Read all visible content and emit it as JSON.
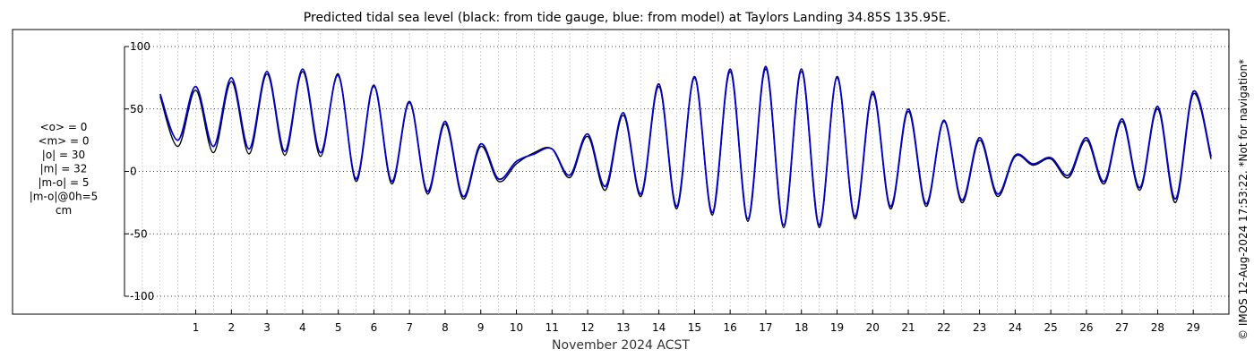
{
  "chart_data": {
    "type": "line",
    "title": "Predicted tidal sea level (black: from tide gauge, blue: from model) at Taylors Landing 34.85S 135.95E.",
    "xlabel": "November 2024 ACST",
    "ylabel": "",
    "xlim": [
      -1,
      30
    ],
    "ylim": [
      -110,
      110
    ],
    "x_ticks": [
      1,
      2,
      3,
      4,
      5,
      6,
      7,
      8,
      9,
      10,
      11,
      12,
      13,
      14,
      15,
      16,
      17,
      18,
      19,
      20,
      21,
      22,
      23,
      24,
      25,
      26,
      27,
      28,
      29
    ],
    "x_tick_labels": [
      "1",
      "2",
      "3",
      "4",
      "5",
      "6",
      "7",
      "8",
      "9",
      "10",
      "11",
      "12",
      "13",
      "14",
      "15",
      "16",
      "17",
      "18",
      "19",
      "20",
      "21",
      "22",
      "23",
      "24",
      "25",
      "26",
      "27",
      "28",
      "29"
    ],
    "y_ticks": [
      -100,
      -50,
      0,
      50,
      100
    ],
    "y_tick_labels": [
      "-100",
      "-50",
      "0",
      "50",
      "100"
    ],
    "grid": true,
    "stats_lines": [
      "<o> = 0",
      "<m> = 0",
      "|o| = 30",
      "|m| = 32",
      "|m-o| = 5",
      "|m-o|@0h=5",
      "cm"
    ],
    "credit": "© IMOS 12-Aug-2024 17:53:22. *Not for navigation*",
    "series": [
      {
        "name": "tide gauge",
        "color": "#000000",
        "x": [
          0.0,
          0.5,
          1.0,
          1.5,
          2.0,
          2.5,
          3.0,
          3.5,
          4.0,
          4.5,
          5.0,
          5.5,
          6.0,
          6.5,
          7.0,
          7.5,
          8.0,
          8.5,
          9.0,
          9.5,
          10.0,
          10.5,
          11.0,
          11.5,
          12.0,
          12.5,
          13.0,
          13.5,
          14.0,
          14.5,
          15.0,
          15.5,
          16.0,
          16.5,
          17.0,
          17.5,
          18.0,
          18.5,
          19.0,
          19.5,
          20.0,
          20.5,
          21.0,
          21.5,
          22.0,
          22.5,
          23.0,
          23.5,
          24.0,
          24.5,
          25.0,
          25.5,
          26.0,
          26.5,
          27.0,
          27.5,
          28.0,
          28.5,
          29.0,
          29.5
        ],
        "y": [
          60,
          20,
          65,
          15,
          72,
          14,
          78,
          13,
          80,
          12,
          78,
          -8,
          68,
          -10,
          55,
          -18,
          38,
          -22,
          20,
          -8,
          6,
          15,
          18,
          -5,
          28,
          -15,
          45,
          -20,
          68,
          -30,
          75,
          -35,
          80,
          -40,
          82,
          -45,
          80,
          -45,
          75,
          -38,
          62,
          -30,
          48,
          -28,
          40,
          -25,
          25,
          -20,
          12,
          5,
          10,
          -5,
          25,
          -10,
          40,
          -15,
          50,
          -25,
          62,
          10
        ]
      },
      {
        "name": "model",
        "color": "#0000cc",
        "x": [
          0.0,
          0.5,
          1.0,
          1.5,
          2.0,
          2.5,
          3.0,
          3.5,
          4.0,
          4.5,
          5.0,
          5.5,
          6.0,
          6.5,
          7.0,
          7.5,
          8.0,
          8.5,
          9.0,
          9.5,
          10.0,
          10.5,
          11.0,
          11.5,
          12.0,
          12.5,
          13.0,
          13.5,
          14.0,
          14.5,
          15.0,
          15.5,
          16.0,
          16.5,
          17.0,
          17.5,
          18.0,
          18.5,
          19.0,
          19.5,
          20.0,
          20.5,
          21.0,
          21.5,
          22.0,
          22.5,
          23.0,
          23.5,
          24.0,
          24.5,
          25.0,
          25.5,
          26.0,
          26.5,
          27.0,
          27.5,
          28.0,
          28.5,
          29.0,
          29.5
        ],
        "y": [
          62,
          25,
          68,
          20,
          75,
          18,
          80,
          16,
          82,
          15,
          77,
          -6,
          69,
          -8,
          56,
          -16,
          40,
          -20,
          22,
          -6,
          8,
          14,
          18,
          -3,
          30,
          -12,
          47,
          -18,
          70,
          -28,
          76,
          -33,
          82,
          -38,
          84,
          -43,
          82,
          -43,
          76,
          -36,
          64,
          -28,
          50,
          -26,
          41,
          -23,
          27,
          -18,
          13,
          6,
          11,
          -3,
          27,
          -8,
          42,
          -13,
          52,
          -22,
          64,
          12
        ]
      }
    ]
  }
}
